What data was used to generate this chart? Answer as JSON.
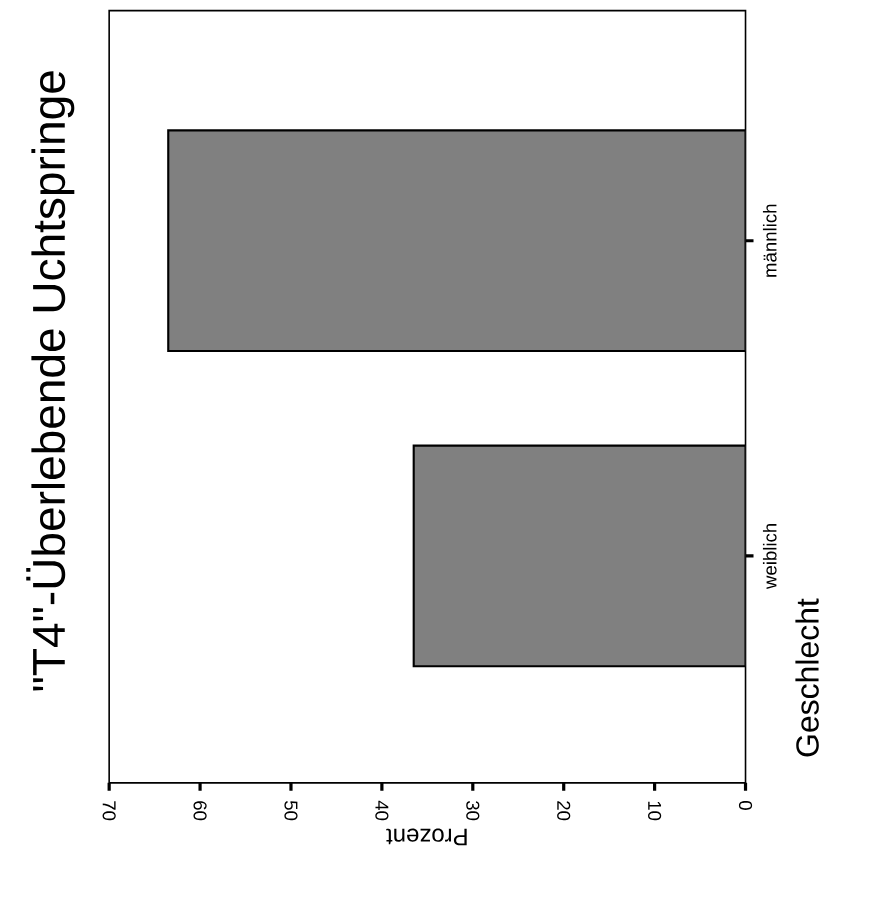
{
  "chart_data": {
    "type": "bar",
    "orientation": "horizontal",
    "title": "\"T4\"-Überlebende Uchtspringe",
    "xlabel": "Prozent",
    "ylabel": "Geschlecht",
    "categories": [
      "männlich",
      "weiblich"
    ],
    "values": [
      63.5,
      36.5
    ],
    "color": "#808080",
    "xlim": [
      70,
      0
    ],
    "xticks": [
      0,
      10,
      20,
      30,
      40,
      50,
      60,
      70
    ]
  }
}
